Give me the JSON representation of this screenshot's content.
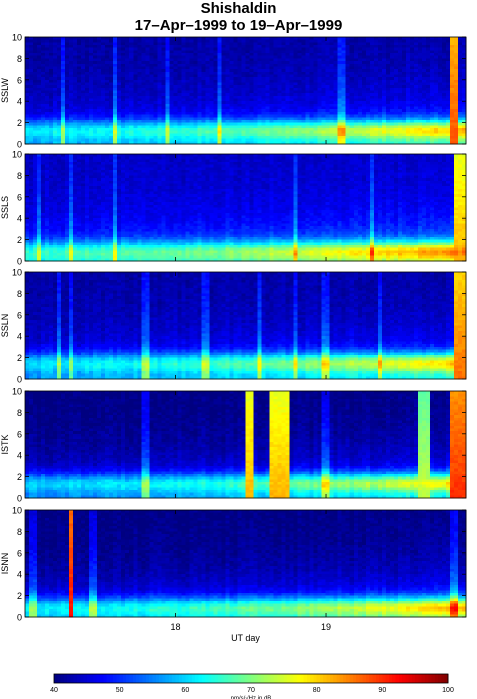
{
  "title": "Shishaldin",
  "subtitle": "17–Apr–1999 to 19–Apr–1999",
  "chart_data": [
    {
      "type": "heatmap",
      "title": "Shishaldin",
      "subtitle": "17–Apr–1999 to 19–Apr–1999",
      "xlabel": "UT day",
      "x_tick_labels": [
        "18",
        "19"
      ],
      "xlim_days": [
        17.0,
        19.93
      ],
      "x_ticks_days": [
        18,
        19
      ],
      "y_ticks": [
        0,
        2,
        4,
        6,
        8,
        10
      ],
      "ylim": [
        0,
        10
      ],
      "colorbar": {
        "label": "nm/s/√Hz in dB",
        "range": [
          40,
          100
        ],
        "ticks": [
          40,
          50,
          60,
          70,
          80,
          90,
          100
        ]
      },
      "panels": [
        {
          "station": "SSLW",
          "bright_band_center": 1.3,
          "base_db": 42,
          "vertical_streaks_days": [
            17.25,
            17.6,
            17.95,
            18.3,
            19.1
          ],
          "high_events": [
            {
              "start": 19.83,
              "end": 19.87,
              "db": 88
            }
          ]
        },
        {
          "station": "SSLS",
          "bright_band_center": 0.9,
          "base_db": 44,
          "vertical_streaks_days": [
            17.1,
            17.3,
            17.6,
            18.8,
            19.3
          ],
          "high_events": [
            {
              "start": 19.86,
              "end": 19.93,
              "db": 82
            }
          ]
        },
        {
          "station": "SSLN",
          "bright_band_center": 1.5,
          "base_db": 42,
          "vertical_streaks_days": [
            17.22,
            17.3,
            17.8,
            18.2,
            18.55,
            18.8,
            19.0,
            19.35
          ],
          "high_events": [
            {
              "start": 19.84,
              "end": 19.93,
              "db": 86
            }
          ]
        },
        {
          "station": "ISTK",
          "bright_band_center": 1.4,
          "base_db": 40,
          "vertical_streaks_days": [
            17.8,
            19.0
          ],
          "high_events": [
            {
              "start": 18.46,
              "end": 18.52,
              "db": 82
            },
            {
              "start": 18.62,
              "end": 18.76,
              "db": 82
            },
            {
              "start": 19.61,
              "end": 19.68,
              "db": 74
            },
            {
              "start": 19.82,
              "end": 19.93,
              "db": 90
            }
          ]
        },
        {
          "station": "ISNN",
          "bright_band_center": 0.9,
          "base_db": 40,
          "vertical_streaks_days": [
            17.05,
            17.45,
            19.85
          ],
          "high_events": [
            {
              "start": 17.28,
              "end": 17.32,
              "db": 92
            }
          ]
        }
      ]
    }
  ]
}
